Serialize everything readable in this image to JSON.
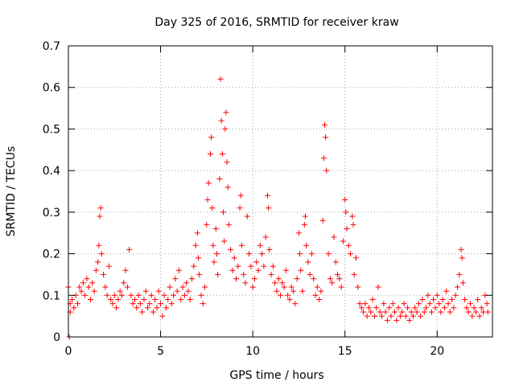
{
  "chart_data": {
    "type": "scatter",
    "title": "Day 325 of 2016, SRMTID for receiver kraw",
    "xlabel": "GPS time / hours",
    "ylabel": "SRMTID / TECUs",
    "xlim": [
      0,
      23
    ],
    "ylim": [
      0,
      0.7
    ],
    "xticks": [
      0,
      5,
      10,
      15,
      20
    ],
    "xtick_labels": [
      "0",
      "5",
      "10",
      "15",
      "20"
    ],
    "yticks": [
      0,
      0.1,
      0.2,
      0.3,
      0.4,
      0.5,
      0.6,
      0.7
    ],
    "ytick_labels": [
      "0",
      "0.1",
      "0.2",
      "0.3",
      "0.4",
      "0.5",
      "0.6",
      "0.7"
    ],
    "grid": true,
    "marker": "+",
    "color": "#ff0000",
    "points": [
      [
        0.0,
        0.12
      ],
      [
        0.05,
        0.0
      ],
      [
        0.1,
        0.08
      ],
      [
        0.1,
        0.06
      ],
      [
        0.2,
        0.09
      ],
      [
        0.3,
        0.07
      ],
      [
        0.4,
        0.1
      ],
      [
        0.5,
        0.08
      ],
      [
        0.6,
        0.12
      ],
      [
        0.7,
        0.11
      ],
      [
        0.8,
        0.13
      ],
      [
        0.9,
        0.1
      ],
      [
        1.0,
        0.14
      ],
      [
        1.1,
        0.12
      ],
      [
        1.2,
        0.09
      ],
      [
        1.3,
        0.13
      ],
      [
        1.4,
        0.11
      ],
      [
        1.5,
        0.16
      ],
      [
        1.6,
        0.18
      ],
      [
        1.65,
        0.22
      ],
      [
        1.7,
        0.29
      ],
      [
        1.75,
        0.31
      ],
      [
        1.8,
        0.2
      ],
      [
        1.9,
        0.15
      ],
      [
        2.0,
        0.12
      ],
      [
        2.1,
        0.1
      ],
      [
        2.2,
        0.17
      ],
      [
        2.3,
        0.09
      ],
      [
        2.4,
        0.08
      ],
      [
        2.5,
        0.1
      ],
      [
        2.6,
        0.07
      ],
      [
        2.7,
        0.09
      ],
      [
        2.8,
        0.11
      ],
      [
        2.9,
        0.1
      ],
      [
        3.0,
        0.13
      ],
      [
        3.1,
        0.16
      ],
      [
        3.2,
        0.12
      ],
      [
        3.3,
        0.21
      ],
      [
        3.4,
        0.1
      ],
      [
        3.5,
        0.08
      ],
      [
        3.6,
        0.09
      ],
      [
        3.7,
        0.07
      ],
      [
        3.8,
        0.1
      ],
      [
        3.9,
        0.08
      ],
      [
        4.0,
        0.06
      ],
      [
        4.1,
        0.09
      ],
      [
        4.2,
        0.11
      ],
      [
        4.3,
        0.07
      ],
      [
        4.4,
        0.08
      ],
      [
        4.5,
        0.1
      ],
      [
        4.6,
        0.06
      ],
      [
        4.7,
        0.09
      ],
      [
        4.8,
        0.07
      ],
      [
        4.9,
        0.11
      ],
      [
        5.0,
        0.08
      ],
      [
        5.1,
        0.05
      ],
      [
        5.2,
        0.1
      ],
      [
        5.3,
        0.07
      ],
      [
        5.4,
        0.09
      ],
      [
        5.5,
        0.12
      ],
      [
        5.6,
        0.08
      ],
      [
        5.7,
        0.1
      ],
      [
        5.8,
        0.14
      ],
      [
        5.9,
        0.11
      ],
      [
        6.0,
        0.16
      ],
      [
        6.1,
        0.09
      ],
      [
        6.2,
        0.12
      ],
      [
        6.3,
        0.1
      ],
      [
        6.4,
        0.13
      ],
      [
        6.5,
        0.11
      ],
      [
        6.6,
        0.09
      ],
      [
        6.7,
        0.14
      ],
      [
        6.8,
        0.17
      ],
      [
        6.9,
        0.22
      ],
      [
        7.0,
        0.25
      ],
      [
        7.05,
        0.19
      ],
      [
        7.1,
        0.15
      ],
      [
        7.2,
        0.1
      ],
      [
        7.3,
        0.08
      ],
      [
        7.4,
        0.12
      ],
      [
        7.5,
        0.27
      ],
      [
        7.55,
        0.33
      ],
      [
        7.6,
        0.37
      ],
      [
        7.7,
        0.44
      ],
      [
        7.75,
        0.48
      ],
      [
        7.8,
        0.31
      ],
      [
        7.85,
        0.22
      ],
      [
        7.9,
        0.18
      ],
      [
        8.0,
        0.26
      ],
      [
        8.05,
        0.2
      ],
      [
        8.1,
        0.15
      ],
      [
        8.2,
        0.38
      ],
      [
        8.25,
        0.62
      ],
      [
        8.3,
        0.52
      ],
      [
        8.35,
        0.44
      ],
      [
        8.4,
        0.3
      ],
      [
        8.45,
        0.23
      ],
      [
        8.5,
        0.5
      ],
      [
        8.55,
        0.54
      ],
      [
        8.6,
        0.42
      ],
      [
        8.65,
        0.36
      ],
      [
        8.7,
        0.27
      ],
      [
        8.8,
        0.21
      ],
      [
        8.9,
        0.16
      ],
      [
        9.0,
        0.19
      ],
      [
        9.1,
        0.14
      ],
      [
        9.2,
        0.17
      ],
      [
        9.3,
        0.31
      ],
      [
        9.35,
        0.34
      ],
      [
        9.4,
        0.22
      ],
      [
        9.5,
        0.15
      ],
      [
        9.6,
        0.13
      ],
      [
        9.7,
        0.29
      ],
      [
        9.8,
        0.2
      ],
      [
        9.9,
        0.17
      ],
      [
        10.0,
        0.12
      ],
      [
        10.1,
        0.14
      ],
      [
        10.2,
        0.18
      ],
      [
        10.3,
        0.16
      ],
      [
        10.4,
        0.22
      ],
      [
        10.5,
        0.2
      ],
      [
        10.6,
        0.17
      ],
      [
        10.7,
        0.24
      ],
      [
        10.8,
        0.34
      ],
      [
        10.85,
        0.31
      ],
      [
        10.9,
        0.21
      ],
      [
        11.0,
        0.15
      ],
      [
        11.1,
        0.17
      ],
      [
        11.2,
        0.13
      ],
      [
        11.3,
        0.11
      ],
      [
        11.4,
        0.14
      ],
      [
        11.5,
        0.1
      ],
      [
        11.6,
        0.13
      ],
      [
        11.7,
        0.12
      ],
      [
        11.8,
        0.16
      ],
      [
        11.9,
        0.1
      ],
      [
        12.0,
        0.09
      ],
      [
        12.1,
        0.12
      ],
      [
        12.2,
        0.11
      ],
      [
        12.3,
        0.08
      ],
      [
        12.4,
        0.14
      ],
      [
        12.5,
        0.25
      ],
      [
        12.55,
        0.2
      ],
      [
        12.6,
        0.16
      ],
      [
        12.7,
        0.11
      ],
      [
        12.8,
        0.27
      ],
      [
        12.85,
        0.29
      ],
      [
        12.9,
        0.22
      ],
      [
        13.0,
        0.18
      ],
      [
        13.1,
        0.15
      ],
      [
        13.2,
        0.2
      ],
      [
        13.3,
        0.14
      ],
      [
        13.4,
        0.1
      ],
      [
        13.5,
        0.12
      ],
      [
        13.6,
        0.09
      ],
      [
        13.7,
        0.11
      ],
      [
        13.8,
        0.28
      ],
      [
        13.85,
        0.43
      ],
      [
        13.9,
        0.51
      ],
      [
        13.95,
        0.48
      ],
      [
        14.0,
        0.4
      ],
      [
        14.1,
        0.2
      ],
      [
        14.2,
        0.14
      ],
      [
        14.3,
        0.13
      ],
      [
        14.4,
        0.24
      ],
      [
        14.5,
        0.18
      ],
      [
        14.6,
        0.15
      ],
      [
        14.7,
        0.14
      ],
      [
        14.8,
        0.12
      ],
      [
        14.9,
        0.23
      ],
      [
        15.0,
        0.33
      ],
      [
        15.05,
        0.3
      ],
      [
        15.1,
        0.26
      ],
      [
        15.2,
        0.22
      ],
      [
        15.3,
        0.2
      ],
      [
        15.4,
        0.29
      ],
      [
        15.45,
        0.27
      ],
      [
        15.5,
        0.15
      ],
      [
        15.6,
        0.19
      ],
      [
        15.7,
        0.12
      ],
      [
        15.8,
        0.08
      ],
      [
        15.9,
        0.07
      ],
      [
        16.0,
        0.06
      ],
      [
        16.1,
        0.08
      ],
      [
        16.2,
        0.05
      ],
      [
        16.3,
        0.07
      ],
      [
        16.4,
        0.06
      ],
      [
        16.5,
        0.09
      ],
      [
        16.6,
        0.05
      ],
      [
        16.7,
        0.07
      ],
      [
        16.8,
        0.12
      ],
      [
        16.9,
        0.06
      ],
      [
        17.0,
        0.05
      ],
      [
        17.1,
        0.08
      ],
      [
        17.2,
        0.06
      ],
      [
        17.3,
        0.04
      ],
      [
        17.4,
        0.07
      ],
      [
        17.5,
        0.05
      ],
      [
        17.6,
        0.08
      ],
      [
        17.7,
        0.06
      ],
      [
        17.8,
        0.04
      ],
      [
        17.9,
        0.07
      ],
      [
        18.0,
        0.05
      ],
      [
        18.1,
        0.06
      ],
      [
        18.2,
        0.08
      ],
      [
        18.3,
        0.05
      ],
      [
        18.4,
        0.07
      ],
      [
        18.5,
        0.04
      ],
      [
        18.6,
        0.06
      ],
      [
        18.7,
        0.05
      ],
      [
        18.8,
        0.07
      ],
      [
        18.9,
        0.06
      ],
      [
        19.0,
        0.08
      ],
      [
        19.1,
        0.05
      ],
      [
        19.2,
        0.09
      ],
      [
        19.3,
        0.06
      ],
      [
        19.4,
        0.07
      ],
      [
        19.5,
        0.1
      ],
      [
        19.6,
        0.08
      ],
      [
        19.7,
        0.06
      ],
      [
        19.8,
        0.09
      ],
      [
        19.9,
        0.07
      ],
      [
        20.0,
        0.1
      ],
      [
        20.1,
        0.08
      ],
      [
        20.2,
        0.06
      ],
      [
        20.3,
        0.09
      ],
      [
        20.4,
        0.07
      ],
      [
        20.5,
        0.11
      ],
      [
        20.6,
        0.08
      ],
      [
        20.7,
        0.06
      ],
      [
        20.8,
        0.09
      ],
      [
        20.9,
        0.07
      ],
      [
        21.0,
        0.1
      ],
      [
        21.1,
        0.12
      ],
      [
        21.2,
        0.15
      ],
      [
        21.3,
        0.21
      ],
      [
        21.35,
        0.19
      ],
      [
        21.4,
        0.13
      ],
      [
        21.5,
        0.09
      ],
      [
        21.6,
        0.07
      ],
      [
        21.7,
        0.06
      ],
      [
        21.8,
        0.08
      ],
      [
        21.9,
        0.05
      ],
      [
        22.0,
        0.07
      ],
      [
        22.1,
        0.06
      ],
      [
        22.2,
        0.09
      ],
      [
        22.3,
        0.05
      ],
      [
        22.4,
        0.07
      ],
      [
        22.5,
        0.06
      ],
      [
        22.6,
        0.1
      ],
      [
        22.7,
        0.08
      ],
      [
        22.75,
        0.06
      ]
    ]
  }
}
